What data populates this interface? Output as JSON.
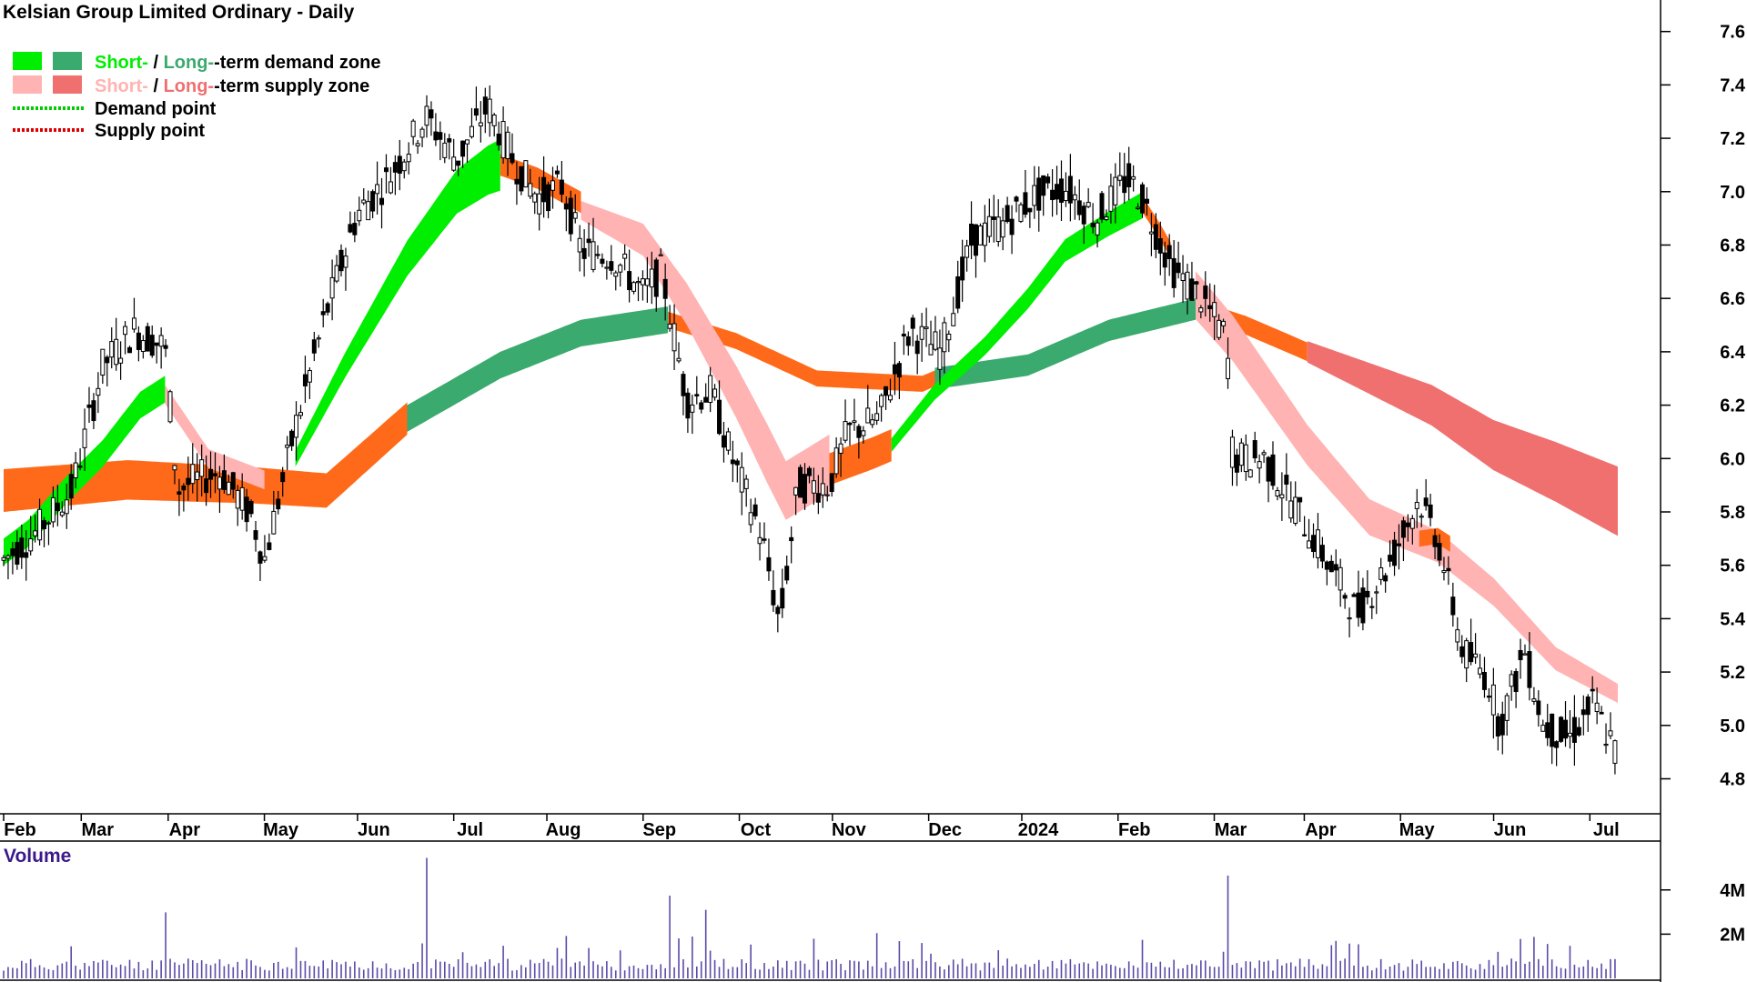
{
  "header": {
    "title": "Kelsian Group Limited Ordinary - Daily"
  },
  "legend": {
    "items": [
      {
        "key": "zones-demand",
        "short": "Short-",
        "sep": " / ",
        "long": "Long-",
        "rest": "-term demand zone",
        "short_color": "#00ee00",
        "long_color": "#3aaa6e"
      },
      {
        "key": "zones-supply",
        "short": "Short-",
        "sep": " / ",
        "long": "Long-",
        "rest": "-term supply zone",
        "short_color": "#ffb3b3",
        "long_color": "#f07070"
      },
      {
        "key": "demand-point",
        "label": "Demand point",
        "color": "#00cc00"
      },
      {
        "key": "supply-point",
        "label": "Supply point",
        "color": "#dd0000"
      }
    ]
  },
  "volume_panel": {
    "title": "Volume"
  },
  "colors": {
    "short_demand": "#00ee00",
    "long_demand": "#3aaa6e",
    "short_supply": "#ffb3b3",
    "long_supply": "#f07070",
    "neutral_band": "#ff6a1a",
    "candle": "#000000",
    "volume_bar": "#5a4aa8",
    "volume_title": "#3a1a8a"
  },
  "chart_data": {
    "type": "candlestick",
    "title": "Kelsian Group Limited Ordinary - Daily",
    "price_axis": {
      "ticks": [
        "7.6",
        "7.4",
        "7.2",
        "7.0",
        "6.8",
        "6.6",
        "6.4",
        "6.2",
        "6.0",
        "5.8",
        "5.6",
        "5.4",
        "5.2",
        "5.0",
        "4.8"
      ],
      "ylim": [
        4.72,
        7.65
      ]
    },
    "time_axis": {
      "ticks": [
        "Feb",
        "Mar",
        "Apr",
        "May",
        "Jun",
        "Jul",
        "Aug",
        "Sep",
        "Oct",
        "Nov",
        "Dec",
        "2024",
        "Feb",
        "Mar",
        "Apr",
        "May",
        "Jun",
        "Jul"
      ],
      "range_days": [
        0,
        520
      ]
    },
    "volume_axis": {
      "ticks": [
        "4M",
        "2M"
      ],
      "ylim": [
        0,
        5.8
      ]
    },
    "price_path": [
      [
        0,
        5.62
      ],
      [
        10,
        5.72
      ],
      [
        22,
        5.88
      ],
      [
        32,
        6.35
      ],
      [
        42,
        6.48
      ],
      [
        52,
        6.42
      ],
      [
        56,
        5.88
      ],
      [
        62,
        5.92
      ],
      [
        70,
        5.95
      ],
      [
        80,
        5.78
      ],
      [
        84,
        5.62
      ],
      [
        94,
        6.12
      ],
      [
        104,
        6.55
      ],
      [
        114,
        6.92
      ],
      [
        124,
        7.05
      ],
      [
        136,
        7.28
      ],
      [
        146,
        7.12
      ],
      [
        156,
        7.32
      ],
      [
        164,
        7.12
      ],
      [
        172,
        6.98
      ],
      [
        180,
        7.02
      ],
      [
        186,
        6.78
      ],
      [
        196,
        6.76
      ],
      [
        206,
        6.62
      ],
      [
        212,
        6.7
      ],
      [
        220,
        6.22
      ],
      [
        228,
        6.25
      ],
      [
        234,
        6.02
      ],
      [
        244,
        5.72
      ],
      [
        250,
        5.38
      ],
      [
        256,
        5.9
      ],
      [
        266,
        5.9
      ],
      [
        272,
        6.1
      ],
      [
        282,
        6.15
      ],
      [
        292,
        6.48
      ],
      [
        302,
        6.4
      ],
      [
        312,
        6.82
      ],
      [
        322,
        6.88
      ],
      [
        332,
        6.98
      ],
      [
        342,
        7.02
      ],
      [
        352,
        6.9
      ],
      [
        362,
        7.05
      ],
      [
        367,
        6.97
      ],
      [
        376,
        6.72
      ],
      [
        386,
        6.6
      ],
      [
        394,
        6.45
      ],
      [
        396,
        6.0
      ],
      [
        406,
        6.0
      ],
      [
        416,
        5.82
      ],
      [
        426,
        5.62
      ],
      [
        436,
        5.42
      ],
      [
        446,
        5.6
      ],
      [
        456,
        5.85
      ],
      [
        462,
        5.7
      ],
      [
        470,
        5.28
      ],
      [
        478,
        5.18
      ],
      [
        482,
        5.0
      ],
      [
        490,
        5.28
      ],
      [
        496,
        5.0
      ],
      [
        504,
        4.95
      ],
      [
        512,
        5.08
      ],
      [
        520,
        4.88
      ]
    ],
    "series": [
      {
        "name": "Short-term demand zone",
        "points": [
          [
            0,
            5.65
          ],
          [
            8,
            5.72
          ],
          [
            20,
            5.88
          ],
          [
            32,
            6.02
          ],
          [
            44,
            6.2
          ],
          [
            52,
            6.26
          ],
          [
            94,
            6.0
          ],
          [
            110,
            6.35
          ],
          [
            130,
            6.75
          ],
          [
            146,
            7.0
          ],
          [
            156,
            7.08
          ],
          [
            160,
            7.1
          ],
          [
            286,
            6.05
          ],
          [
            300,
            6.25
          ],
          [
            316,
            6.42
          ],
          [
            330,
            6.6
          ],
          [
            342,
            6.78
          ],
          [
            356,
            6.88
          ],
          [
            367,
            6.95
          ]
        ]
      },
      {
        "name": "Long-term demand zone",
        "points": [
          [
            130,
            6.15
          ],
          [
            160,
            6.35
          ],
          [
            186,
            6.47
          ],
          [
            214,
            6.52
          ],
          [
            300,
            6.3
          ],
          [
            330,
            6.35
          ],
          [
            356,
            6.48
          ],
          [
            384,
            6.56
          ]
        ]
      },
      {
        "name": "Short-term supply zone",
        "points": [
          [
            52,
            6.24
          ],
          [
            66,
            6.0
          ],
          [
            84,
            5.92
          ],
          [
            170,
            7.05
          ],
          [
            186,
            6.93
          ],
          [
            206,
            6.82
          ],
          [
            220,
            6.58
          ],
          [
            236,
            6.25
          ],
          [
            252,
            5.88
          ],
          [
            266,
            5.98
          ],
          [
            376,
            6.72
          ],
          [
            396,
            6.45
          ],
          [
            420,
            6.05
          ],
          [
            440,
            5.78
          ],
          [
            462,
            5.67
          ],
          [
            480,
            5.5
          ],
          [
            500,
            5.25
          ],
          [
            520,
            5.12
          ]
        ]
      },
      {
        "name": "Long-term supply zone",
        "points": [
          [
            420,
            6.4
          ],
          [
            440,
            6.3
          ],
          [
            460,
            6.2
          ],
          [
            480,
            6.05
          ],
          [
            500,
            5.95
          ],
          [
            520,
            5.84
          ]
        ]
      },
      {
        "name": "Volume",
        "points": [
          [
            0,
            0.35
          ],
          [
            52,
            2.2
          ],
          [
            136,
            5.45
          ],
          [
            214,
            2.6
          ],
          [
            226,
            3.1
          ],
          [
            296,
            1.6
          ],
          [
            394,
            4.65
          ],
          [
            482,
            1.2
          ],
          [
            520,
            0.8
          ]
        ]
      }
    ],
    "grid": false,
    "legend_position": "top-left"
  }
}
